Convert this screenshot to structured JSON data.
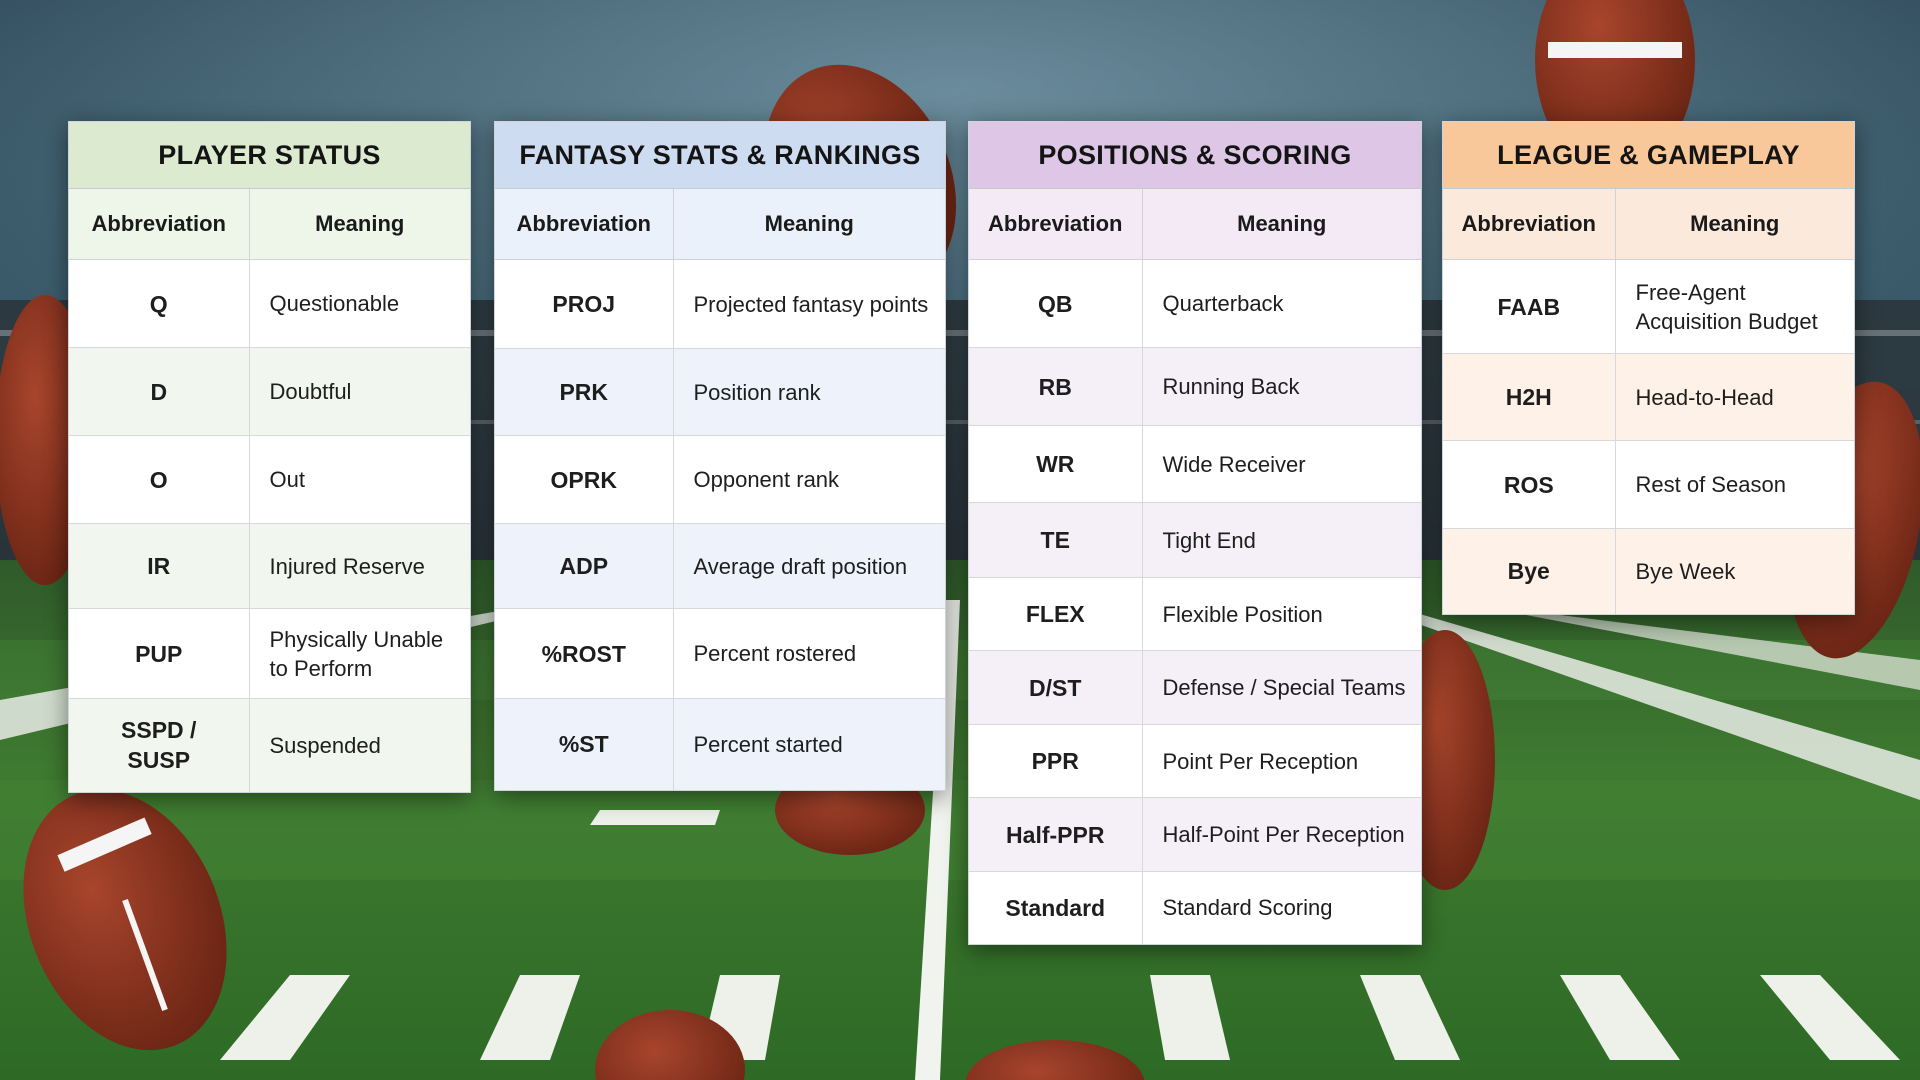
{
  "colors": {
    "player_status_header": "#dcebd0",
    "fantasy_stats_header": "#cddcf0",
    "positions_header": "#ddc6e6",
    "league_header": "#f8c89a"
  },
  "panels": [
    {
      "title": "PLAYER STATUS",
      "col_abbr": "Abbreviation",
      "col_meaning": "Meaning",
      "rows": [
        {
          "abbr": "Q",
          "meaning": "Questionable"
        },
        {
          "abbr": "D",
          "meaning": "Doubtful"
        },
        {
          "abbr": "O",
          "meaning": "Out"
        },
        {
          "abbr": "IR",
          "meaning": "Injured Reserve"
        },
        {
          "abbr": "PUP",
          "meaning": "Physically Unable to Perform"
        },
        {
          "abbr": "SSPD / SUSP",
          "meaning": "Suspended"
        }
      ]
    },
    {
      "title": "FANTASY STATS & RANKINGS",
      "col_abbr": "Abbreviation",
      "col_meaning": "Meaning",
      "rows": [
        {
          "abbr": "PROJ",
          "meaning": "Projected fantasy points"
        },
        {
          "abbr": "PRK",
          "meaning": "Position rank"
        },
        {
          "abbr": "OPRK",
          "meaning": "Opponent rank"
        },
        {
          "abbr": "ADP",
          "meaning": "Average draft position"
        },
        {
          "abbr": "%ROST",
          "meaning": "Percent rostered"
        },
        {
          "abbr": "%ST",
          "meaning": "Percent started"
        }
      ]
    },
    {
      "title": "POSITIONS & SCORING",
      "col_abbr": "Abbreviation",
      "col_meaning": "Meaning",
      "rows": [
        {
          "abbr": "QB",
          "meaning": "Quarterback"
        },
        {
          "abbr": "RB",
          "meaning": "Running Back"
        },
        {
          "abbr": "WR",
          "meaning": "Wide Receiver"
        },
        {
          "abbr": "TE",
          "meaning": "Tight End"
        },
        {
          "abbr": "FLEX",
          "meaning": "Flexible Position"
        },
        {
          "abbr": "D/ST",
          "meaning": "Defense / Special Teams"
        },
        {
          "abbr": "PPR",
          "meaning": "Point Per Reception"
        },
        {
          "abbr": "Half-PPR",
          "meaning": "Half-Point Per Reception"
        },
        {
          "abbr": "Standard",
          "meaning": "Standard Scoring"
        }
      ]
    },
    {
      "title": "LEAGUE & GAMEPLAY",
      "col_abbr": "Abbreviation",
      "col_meaning": "Meaning",
      "rows": [
        {
          "abbr": "FAAB",
          "meaning": "Free-Agent Acquisition Budget"
        },
        {
          "abbr": "H2H",
          "meaning": "Head-to-Head"
        },
        {
          "abbr": "ROS",
          "meaning": "Rest of Season"
        },
        {
          "abbr": "Bye",
          "meaning": "Bye Week"
        }
      ]
    }
  ]
}
